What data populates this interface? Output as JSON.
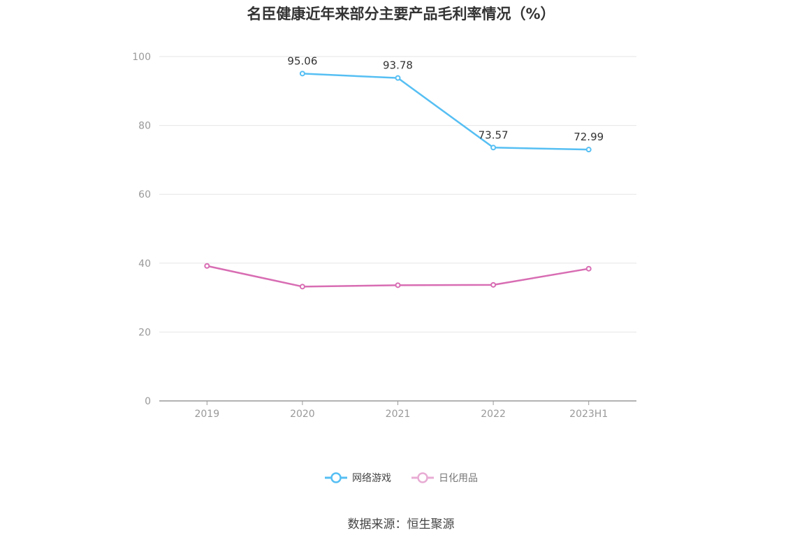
{
  "chart_data": {
    "type": "line",
    "title": "名臣健康近年来部分主要产品毛利率情况（%）",
    "categories": [
      "2019",
      "2020",
      "2021",
      "2022",
      "2023H1"
    ],
    "ylim": [
      0,
      100
    ],
    "yticks": [
      0,
      20,
      40,
      60,
      80,
      100
    ],
    "grid": true,
    "legend_position": "bottom",
    "series": [
      {
        "name": "网络游戏",
        "color": "#56bff3",
        "values": [
          null,
          95.06,
          93.78,
          73.57,
          72.99
        ],
        "data_labels": [
          "",
          "95.06",
          "93.78",
          "73.57",
          "72.99"
        ]
      },
      {
        "name": "日化用品",
        "color": "#d86db3",
        "values": [
          39.2,
          33.2,
          33.6,
          33.7,
          38.4
        ],
        "data_labels": [
          "",
          "",
          "",
          "",
          ""
        ]
      }
    ]
  },
  "legend": {
    "items": [
      {
        "label": "网络游戏",
        "color": "#56bff3",
        "label_color": "#444444"
      },
      {
        "label": "日化用品",
        "color": "#e8acd4",
        "label_color": "#777777"
      }
    ]
  },
  "source": "数据来源：恒生聚源"
}
